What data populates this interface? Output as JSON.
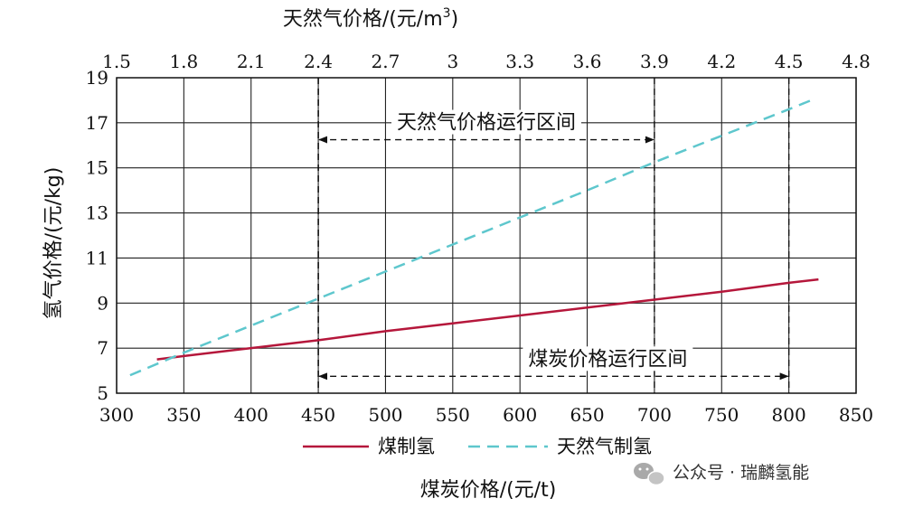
{
  "chart_data": {
    "type": "line",
    "x_bottom": {
      "label": "煤炭价格/(元/t)",
      "range": [
        300,
        850
      ],
      "ticks": [
        300,
        350,
        400,
        450,
        500,
        550,
        600,
        650,
        700,
        750,
        800,
        850
      ]
    },
    "x_top": {
      "label_main": "天然气价格/(元/m",
      "label_sup": "3",
      "label_close": ")",
      "range": [
        1.5,
        4.8
      ],
      "ticks": [
        "1.5",
        "1.8",
        "2.1",
        "2.4",
        "2.7",
        "3",
        "3.3",
        "3.6",
        "3.9",
        "4.2",
        "4.5",
        "4.8"
      ]
    },
    "y": {
      "label": "氢气价格/(元/kg)",
      "range": [
        5,
        19
      ],
      "ticks": [
        5,
        7,
        9,
        11,
        13,
        15,
        17,
        19
      ]
    },
    "grid": true,
    "series": [
      {
        "name": "煤制氢",
        "axis": "bottom",
        "color": "#b5173b",
        "dash": "solid",
        "points": [
          [
            330,
            6.5
          ],
          [
            350,
            6.65
          ],
          [
            400,
            7.0
          ],
          [
            450,
            7.35
          ],
          [
            500,
            7.75
          ],
          [
            550,
            8.1
          ],
          [
            600,
            8.45
          ],
          [
            650,
            8.8
          ],
          [
            700,
            9.15
          ],
          [
            750,
            9.5
          ],
          [
            800,
            9.9
          ],
          [
            822,
            10.05
          ]
        ]
      },
      {
        "name": "天然气制氢",
        "axis": "top",
        "color": "#5ec7cd",
        "dash": "dashed",
        "points": [
          [
            1.56,
            5.8
          ],
          [
            1.8,
            6.8
          ],
          [
            2.4,
            9.2
          ],
          [
            3.0,
            11.6
          ],
          [
            3.6,
            14.0
          ],
          [
            3.9,
            15.25
          ],
          [
            4.5,
            17.6
          ],
          [
            4.6,
            18.0
          ]
        ]
      }
    ],
    "bands": [
      {
        "label": "天然气价格运行区间",
        "from": 2.4,
        "to": 3.9,
        "axis": "top",
        "arrow_y": 16.25
      },
      {
        "label": "煤炭价格运行区间",
        "from": 450,
        "to": 800,
        "axis": "bottom",
        "arrow_y": 5.75
      }
    ],
    "legend": {
      "placement": "bottom"
    }
  },
  "watermark": "公众号 · 瑞麟氢能"
}
